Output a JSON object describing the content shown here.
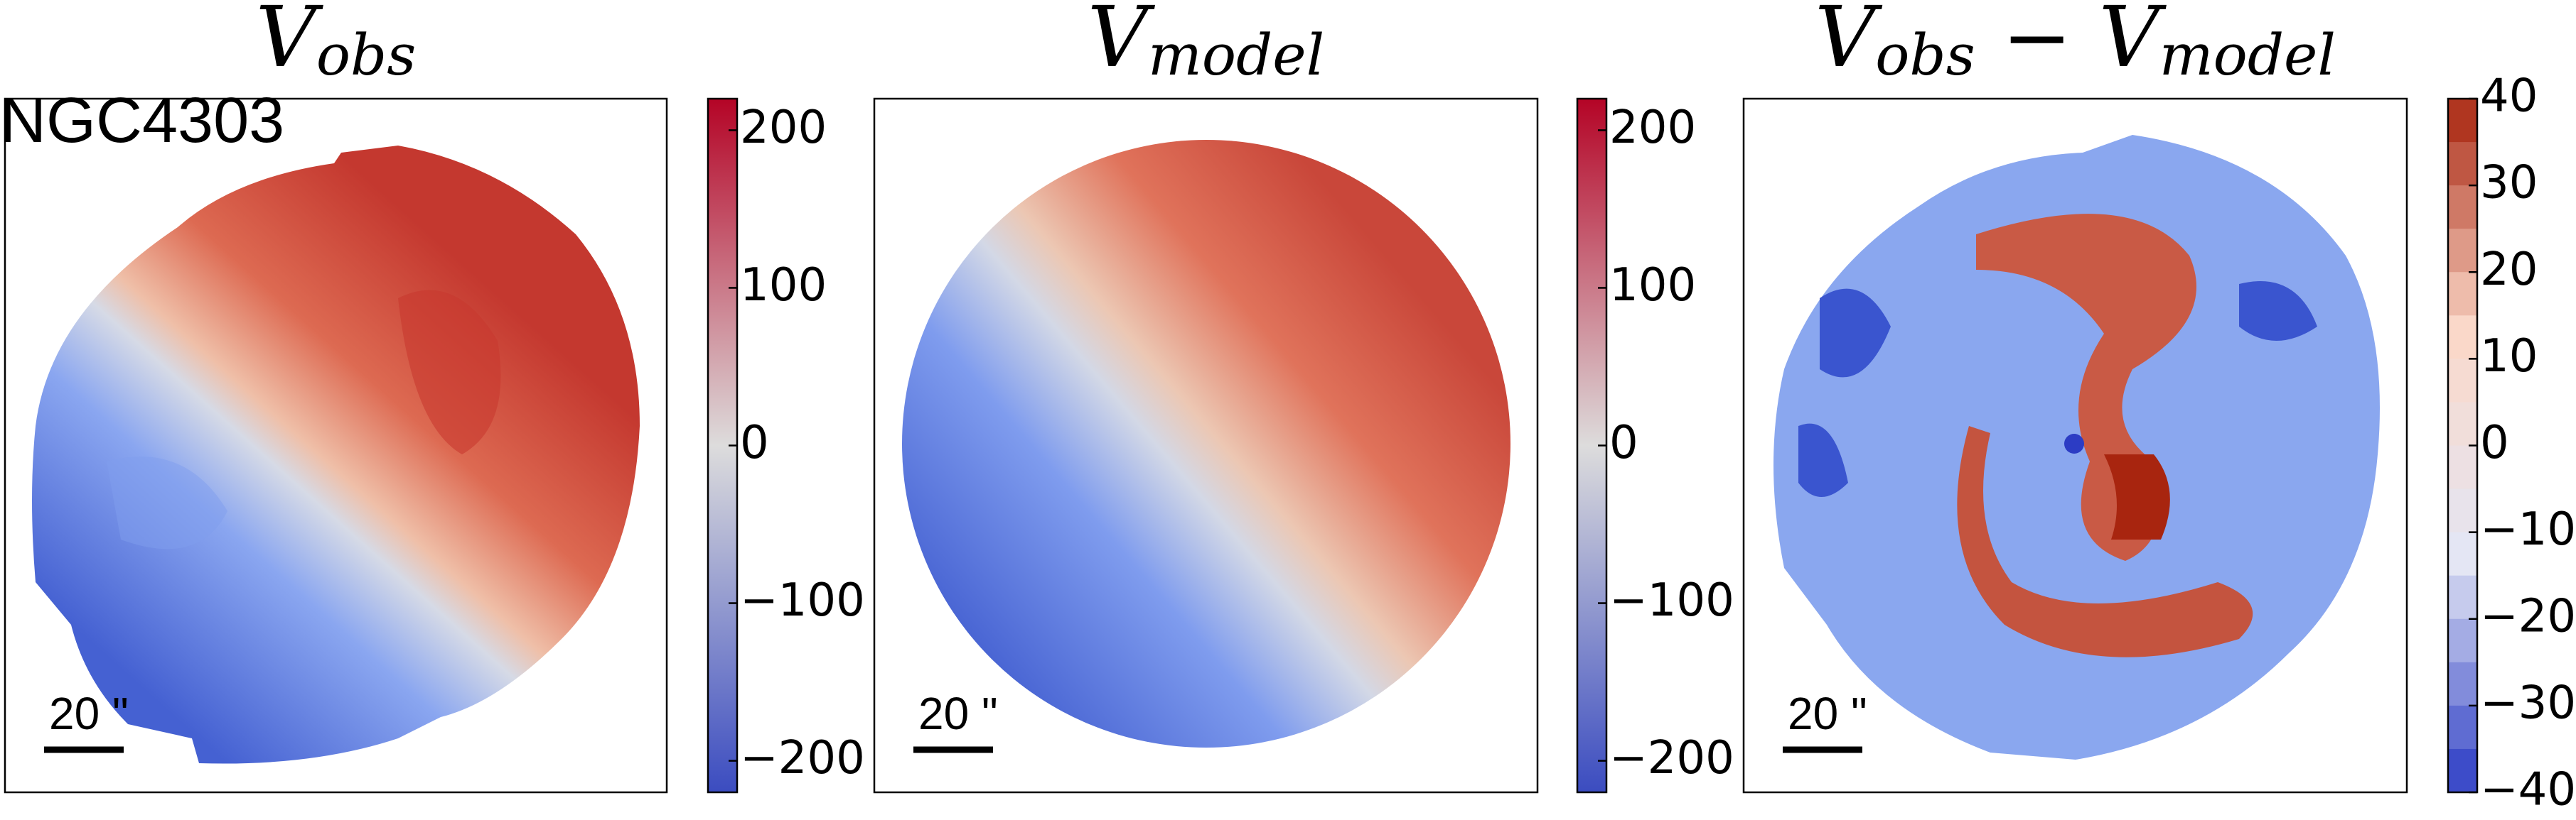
{
  "chart_data": [
    {
      "type": "velocity-map",
      "title": [
        {
          "text": "V"
        },
        {
          "text": "obs",
          "sub": true
        }
      ],
      "annotation": "NGC4303",
      "scale_label": "20 \"",
      "colorbar": {
        "lim": [
          -220,
          220
        ],
        "ticks": [
          {
            "value": -200,
            "label": "−200"
          },
          {
            "value": -100,
            "label": "−100"
          },
          0,
          100,
          200
        ],
        "colors": [
          "#3b4cc0",
          "#dddcdc",
          "#b40426"
        ],
        "discrete": false
      }
    },
    {
      "type": "velocity-map",
      "title": [
        {
          "text": "V"
        },
        {
          "text": "model",
          "sub": true
        }
      ],
      "scale_label": "20 \"",
      "colorbar": {
        "lim": [
          -220,
          220
        ],
        "ticks": [
          {
            "value": -200,
            "label": "−200"
          },
          {
            "value": -100,
            "label": "−100"
          },
          0,
          100,
          200
        ],
        "colors": [
          "#3b4cc0",
          "#dddcdc",
          "#b40426"
        ],
        "discrete": false
      }
    },
    {
      "type": "velocity-map",
      "title": [
        {
          "text": "V"
        },
        {
          "text": "obs",
          "sub": true
        },
        {
          "text": " − V"
        },
        {
          "text": "model",
          "sub": true
        }
      ],
      "scale_label": "20 \"",
      "colorbar": {
        "lim": [
          -40,
          40
        ],
        "ticks": [
          {
            "value": -40,
            "label": "−40"
          },
          {
            "value": -30,
            "label": "−30"
          },
          {
            "value": -20,
            "label": "−20"
          },
          {
            "value": -10,
            "label": "−10"
          },
          0,
          10,
          20,
          30,
          40
        ],
        "colors": [
          "#2c3cc4",
          "#e3e6f5",
          "#fbd8c8",
          "#a8250f"
        ],
        "discrete": true
      }
    }
  ]
}
